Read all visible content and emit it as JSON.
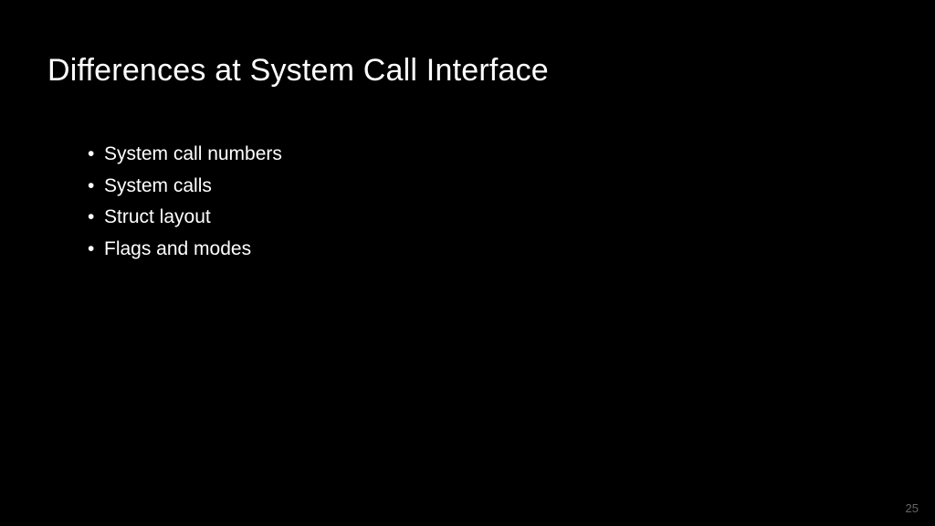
{
  "slide": {
    "title": "Differences at System Call Interface",
    "bullets": [
      "System call numbers",
      "System calls",
      "Struct layout",
      "Flags and modes"
    ],
    "page_number": "25",
    "background_color": "#000000",
    "text_color": "#ffffff",
    "page_number_color": "#666666",
    "title_fontsize": 34,
    "bullet_fontsize": 21
  }
}
